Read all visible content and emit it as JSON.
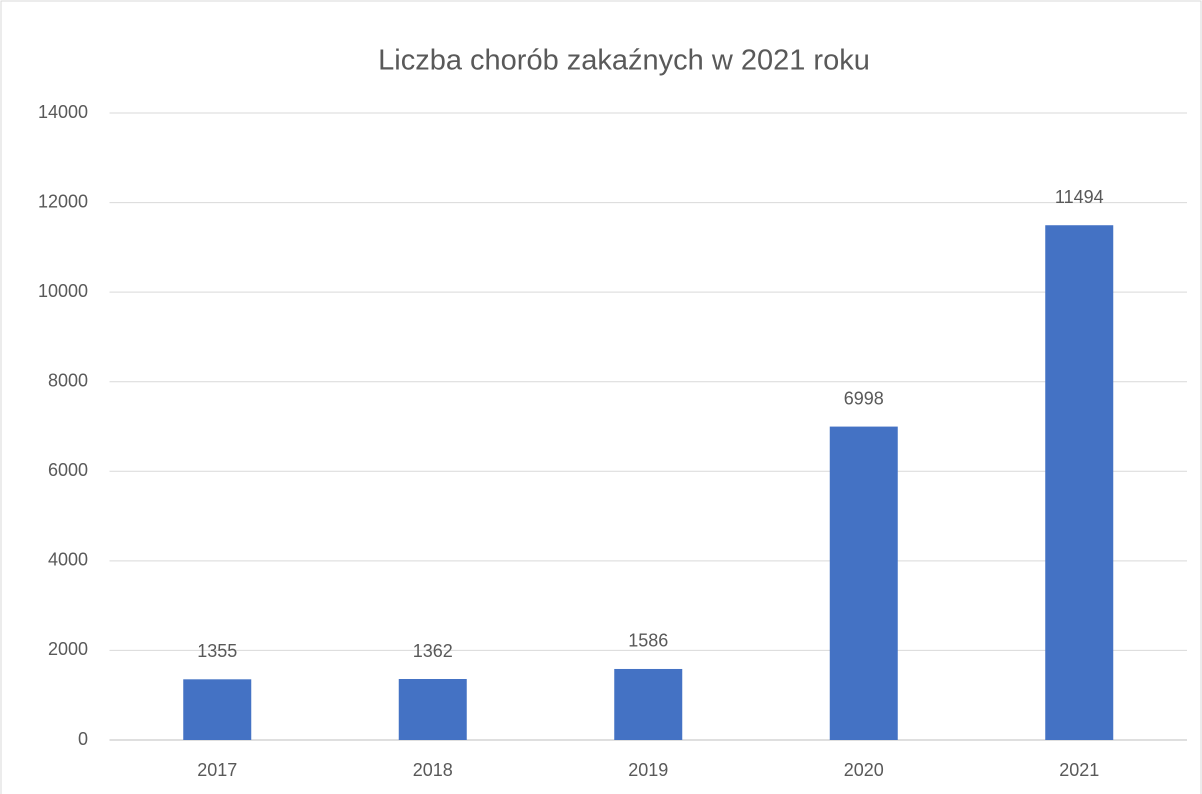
{
  "chart_data": {
    "type": "bar",
    "title": "Liczba chorób zakaźnych w 2021 roku",
    "categories": [
      "2017",
      "2018",
      "2019",
      "2020",
      "2021"
    ],
    "values": [
      1355,
      1362,
      1586,
      6998,
      11494
    ],
    "color": "#4472c4",
    "ylim": [
      0,
      14000
    ],
    "yticks": [
      0,
      2000,
      4000,
      6000,
      8000,
      10000,
      12000,
      14000
    ],
    "grid": true,
    "data_labels": true
  }
}
